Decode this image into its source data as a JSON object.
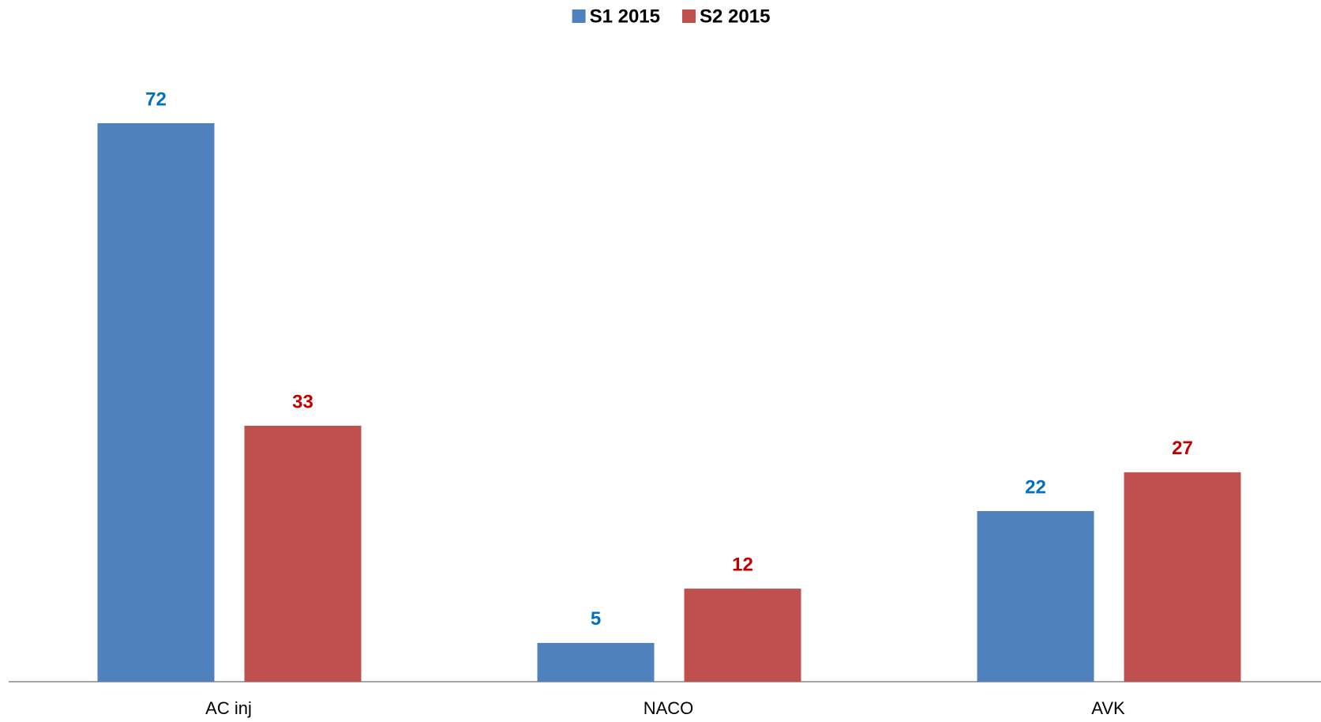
{
  "chart_data": {
    "type": "bar",
    "categories": [
      "AC inj",
      "NACO",
      "AVK"
    ],
    "series": [
      {
        "name": "S1 2015",
        "color": "#4f81bd",
        "label_color": "#0070c0",
        "values": [
          72,
          5,
          22
        ]
      },
      {
        "name": "S2 2015",
        "color": "#c0504d",
        "label_color": "#c00000",
        "values": [
          33,
          12,
          27
        ]
      }
    ],
    "legend": "top",
    "grid": false
  }
}
